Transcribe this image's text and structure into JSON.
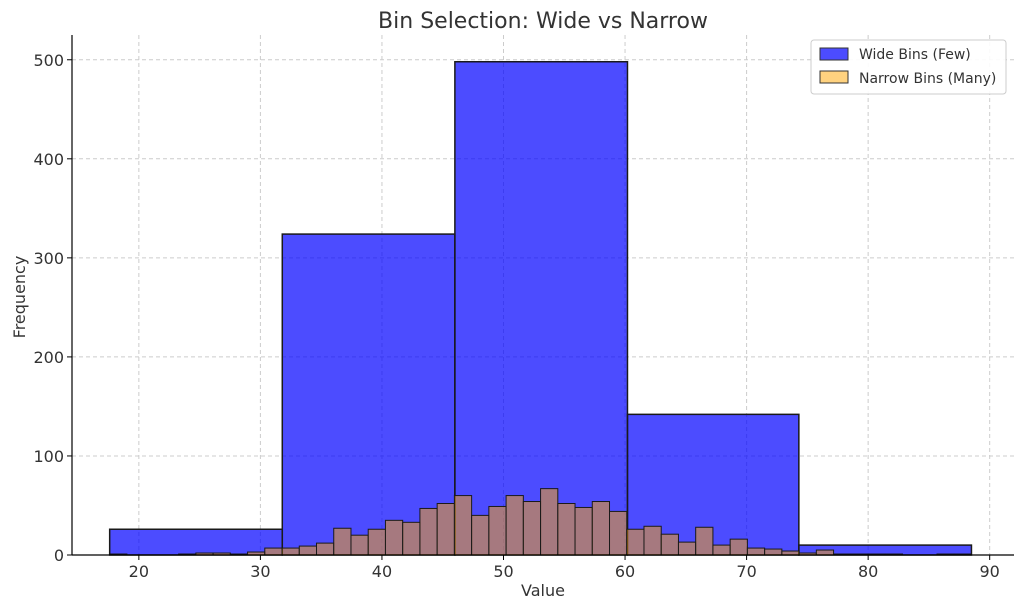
{
  "chart_data": {
    "type": "bar",
    "title": "Bin Selection: Wide vs Narrow",
    "xlabel": "Value",
    "ylabel": "Frequency",
    "xlim": [
      14.5,
      92
    ],
    "ylim": [
      0,
      525
    ],
    "xticks": [
      20,
      30,
      40,
      50,
      60,
      70,
      80,
      90
    ],
    "yticks": [
      0,
      100,
      200,
      300,
      400,
      500
    ],
    "grid": true,
    "legend_position": "top-right",
    "series": [
      {
        "name": "Wide Bins (Few)",
        "color": "#0000ff",
        "bins": [
          {
            "x0": 17.6,
            "x1": 31.8,
            "value": 26
          },
          {
            "x0": 31.8,
            "x1": 46.0,
            "value": 324
          },
          {
            "x0": 46.0,
            "x1": 60.2,
            "value": 498
          },
          {
            "x0": 60.2,
            "x1": 74.3,
            "value": 142
          },
          {
            "x0": 74.3,
            "x1": 88.5,
            "value": 10
          }
        ]
      },
      {
        "name": "Narrow Bins (Many)",
        "color": "#ffa500",
        "bin_start": 17.6,
        "bin_width": 1.418,
        "values": [
          1,
          0,
          0,
          0,
          1,
          2,
          2,
          1,
          3,
          7,
          7,
          9,
          12,
          27,
          20,
          26,
          35,
          33,
          47,
          52,
          60,
          40,
          49,
          60,
          54,
          67,
          52,
          48,
          54,
          44,
          26,
          29,
          21,
          13,
          28,
          10,
          16,
          7,
          6,
          4,
          2,
          5,
          1,
          1,
          1,
          1,
          0,
          0,
          1,
          1
        ]
      }
    ]
  }
}
